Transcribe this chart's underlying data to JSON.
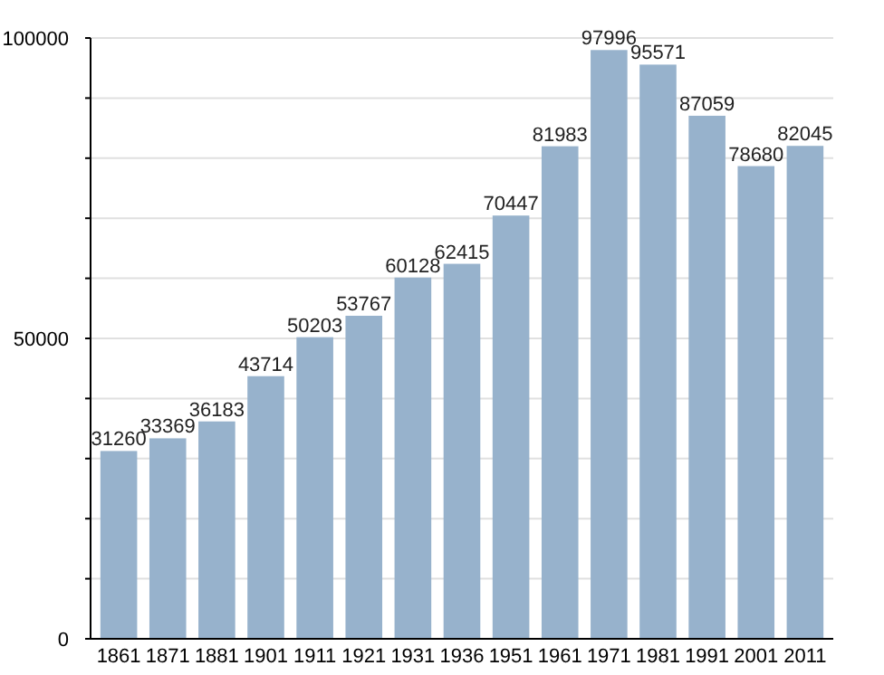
{
  "chart_data": {
    "type": "bar",
    "categories": [
      "1861",
      "1871",
      "1881",
      "1901",
      "1911",
      "1921",
      "1931",
      "1936",
      "1951",
      "1961",
      "1971",
      "1981",
      "1991",
      "2001",
      "2011"
    ],
    "values": [
      31260,
      33369,
      36183,
      43714,
      50203,
      53767,
      60128,
      62415,
      70447,
      81983,
      97996,
      95571,
      87059,
      78680,
      82045
    ],
    "color": "#97b2cc",
    "data_labels": true,
    "ylim": [
      0,
      100000
    ],
    "yticks": [
      0,
      {
        "value": 10000,
        "label": null
      },
      {
        "value": 20000,
        "label": null
      },
      {
        "value": 30000,
        "label": null
      },
      {
        "value": 40000,
        "label": null
      },
      50000,
      {
        "value": 60000,
        "label": null
      },
      {
        "value": 70000,
        "label": null
      },
      {
        "value": 80000,
        "label": null
      },
      {
        "value": 90000,
        "label": null
      },
      100000
    ],
    "grid": "y"
  }
}
